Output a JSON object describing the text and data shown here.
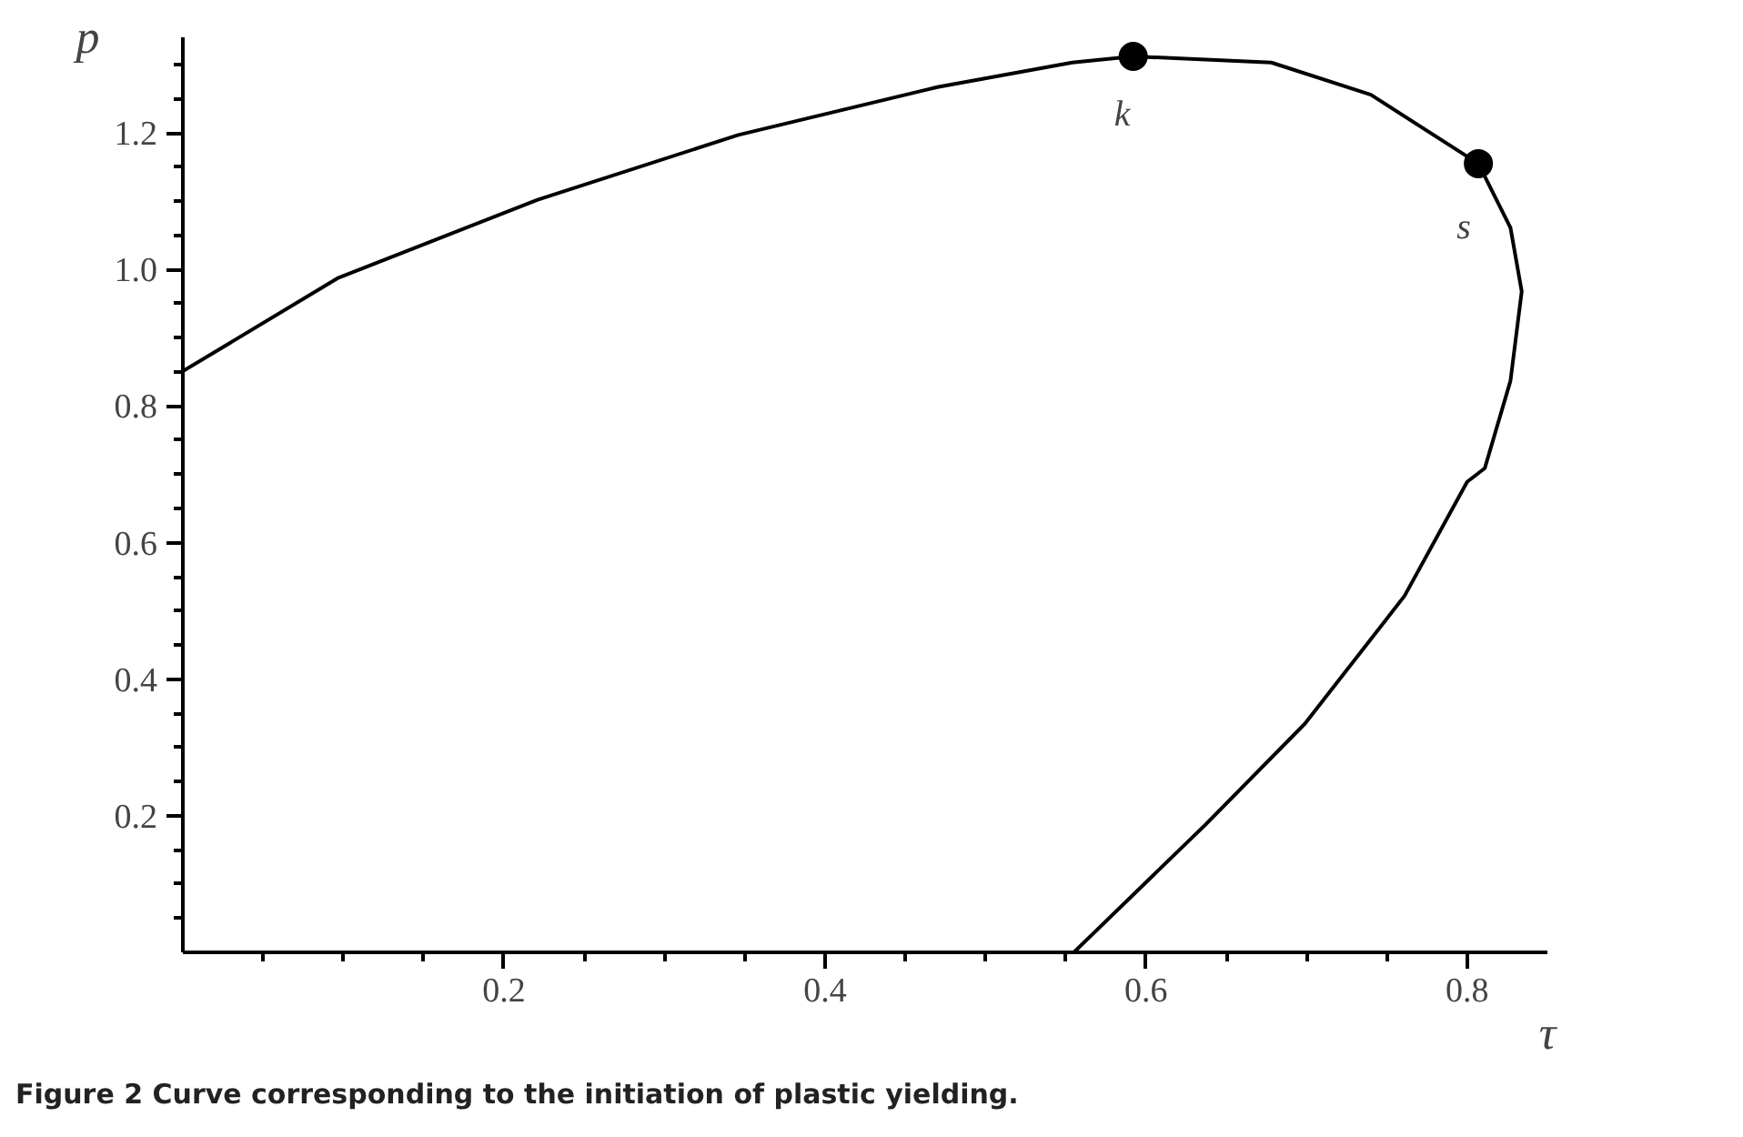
{
  "chart_data": {
    "type": "line",
    "title": "Figure 2 Curve corresponding to the initiation of plastic yielding.",
    "xlabel": "τ",
    "ylabel": "p",
    "series": [
      {
        "color": "#000000",
        "x": [
          0,
          0.097,
          0.221,
          0.346,
          0.47,
          0.554,
          0.592,
          0.678,
          0.74,
          0.807,
          0.827,
          0.834,
          0.827,
          0.811,
          0.8,
          0.761,
          0.699,
          0.637,
          0.555
        ],
        "values": [
          0.851,
          0.988,
          1.102,
          1.197,
          1.267,
          1.303,
          1.312,
          1.303,
          1.256,
          1.155,
          1.061,
          0.968,
          0.837,
          0.709,
          0.689,
          0.522,
          0.335,
          0.187,
          0
        ]
      },
      {
        "type": "scatter",
        "color": "#000000",
        "marker": "circle",
        "x": [
          0.592,
          0.807
        ],
        "values": [
          1.312,
          1.155
        ]
      }
    ],
    "annotations": [
      {
        "text": "k",
        "x": 0.592,
        "y": 1.312
      },
      {
        "text": "s",
        "x": 0.807,
        "y": 1.155
      }
    ],
    "xlim": [
      0,
      0.85
    ],
    "ylim": [
      0,
      1.34
    ],
    "xticks": [
      {
        "value": 0.05,
        "label": null
      },
      {
        "value": 0.1,
        "label": null
      },
      {
        "value": 0.15,
        "label": null
      },
      0.2,
      {
        "value": 0.25,
        "label": null
      },
      {
        "value": 0.3,
        "label": null
      },
      {
        "value": 0.35,
        "label": null
      },
      0.4,
      {
        "value": 0.45,
        "label": null
      },
      {
        "value": 0.5,
        "label": null
      },
      {
        "value": 0.55,
        "label": null
      },
      0.6,
      {
        "value": 0.65,
        "label": null
      },
      {
        "value": 0.7,
        "label": null
      },
      {
        "value": 0.75,
        "label": null
      },
      0.8
    ],
    "yticks": [
      {
        "value": 0.05,
        "label": null
      },
      {
        "value": 0.1,
        "label": null
      },
      {
        "value": 0.15,
        "label": null
      },
      0.2,
      {
        "value": 0.25,
        "label": null
      },
      {
        "value": 0.3,
        "label": null
      },
      {
        "value": 0.35,
        "label": null
      },
      0.4,
      {
        "value": 0.45,
        "label": null
      },
      {
        "value": 0.5,
        "label": null
      },
      {
        "value": 0.55,
        "label": null
      },
      0.6,
      {
        "value": 0.65,
        "label": null
      },
      {
        "value": 0.7,
        "label": null
      },
      {
        "value": 0.75,
        "label": null
      },
      0.8,
      {
        "value": 0.85,
        "label": null
      },
      {
        "value": 0.9,
        "label": null
      },
      {
        "value": 0.95,
        "label": null
      },
      {
        "value": 1.0,
        "label": "1.0"
      },
      {
        "value": 1.05,
        "label": null
      },
      {
        "value": 1.1,
        "label": null
      },
      {
        "value": 1.15,
        "label": null
      },
      1.2,
      {
        "value": 1.25,
        "label": null
      },
      {
        "value": 1.3,
        "label": null
      }
    ],
    "grid": false
  }
}
